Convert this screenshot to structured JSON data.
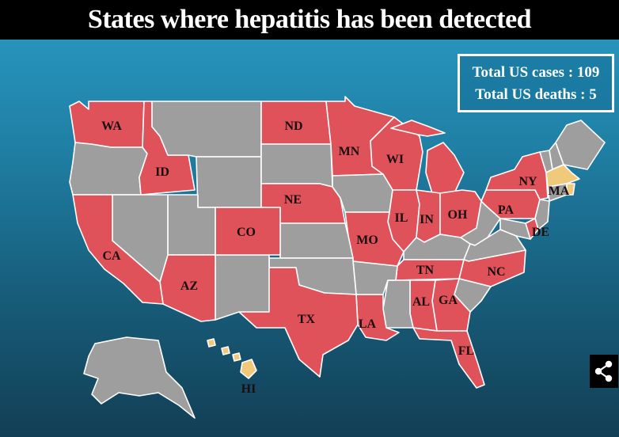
{
  "title": "States where hepatitis has been detected",
  "stats": {
    "cases": "Total US cases : 109",
    "deaths": "Total US deaths : 5"
  },
  "colors": {
    "detected": "#e0525a",
    "pending": "#f0c97a",
    "none": "#9e9e9e",
    "border": "#ffffff",
    "ocean_top": "#2a9bc4",
    "ocean_bottom": "#123f55"
  },
  "states": [
    {
      "abbr": "WA",
      "status": "detected"
    },
    {
      "abbr": "ID",
      "status": "detected"
    },
    {
      "abbr": "ND",
      "status": "detected"
    },
    {
      "abbr": "MN",
      "status": "detected"
    },
    {
      "abbr": "WI",
      "status": "detected"
    },
    {
      "abbr": "NY",
      "status": "detected"
    },
    {
      "abbr": "MA",
      "status": "pending"
    },
    {
      "abbr": "NE",
      "status": "detected"
    },
    {
      "abbr": "CO",
      "status": "detected"
    },
    {
      "abbr": "IL",
      "status": "detected"
    },
    {
      "abbr": "IN",
      "status": "detected"
    },
    {
      "abbr": "OH",
      "status": "detected"
    },
    {
      "abbr": "PA",
      "status": "detected"
    },
    {
      "abbr": "DE",
      "status": "detected"
    },
    {
      "abbr": "CA",
      "status": "detected"
    },
    {
      "abbr": "MO",
      "status": "detected"
    },
    {
      "abbr": "AZ",
      "status": "detected"
    },
    {
      "abbr": "TN",
      "status": "detected"
    },
    {
      "abbr": "NC",
      "status": "detected"
    },
    {
      "abbr": "AL",
      "status": "detected"
    },
    {
      "abbr": "GA",
      "status": "detected"
    },
    {
      "abbr": "TX",
      "status": "detected"
    },
    {
      "abbr": "LA",
      "status": "detected"
    },
    {
      "abbr": "FL",
      "status": "detected"
    },
    {
      "abbr": "HI",
      "status": "pending"
    },
    {
      "abbr": "MI",
      "status": "detected"
    },
    {
      "abbr": "SD",
      "status": "none"
    },
    {
      "abbr": "MT",
      "status": "none"
    },
    {
      "abbr": "OR",
      "status": "none"
    },
    {
      "abbr": "WY",
      "status": "none"
    },
    {
      "abbr": "NV",
      "status": "none"
    },
    {
      "abbr": "UT",
      "status": "none"
    },
    {
      "abbr": "NM",
      "status": "none"
    },
    {
      "abbr": "KS",
      "status": "none"
    },
    {
      "abbr": "OK",
      "status": "none"
    },
    {
      "abbr": "IA",
      "status": "none"
    },
    {
      "abbr": "AR",
      "status": "none"
    },
    {
      "abbr": "MS",
      "status": "none"
    },
    {
      "abbr": "KY",
      "status": "none"
    },
    {
      "abbr": "WV",
      "status": "none"
    },
    {
      "abbr": "VA",
      "status": "none"
    },
    {
      "abbr": "SC",
      "status": "none"
    },
    {
      "abbr": "MD",
      "status": "none"
    },
    {
      "abbr": "NJ",
      "status": "none"
    },
    {
      "abbr": "CT",
      "status": "none"
    },
    {
      "abbr": "RI",
      "status": "pending"
    },
    {
      "abbr": "VT",
      "status": "none"
    },
    {
      "abbr": "NH",
      "status": "none"
    },
    {
      "abbr": "ME",
      "status": "none"
    },
    {
      "abbr": "AK",
      "status": "none"
    }
  ],
  "labeled_states": [
    "WA",
    "ID",
    "ND",
    "MN",
    "WI",
    "NY",
    "MA",
    "NE",
    "CO",
    "IL",
    "IN",
    "OH",
    "PA",
    "DE",
    "CA",
    "MO",
    "AZ",
    "TN",
    "NC",
    "AL",
    "GA",
    "TX",
    "LA",
    "FL",
    "HI"
  ],
  "share_icon": "share-icon"
}
